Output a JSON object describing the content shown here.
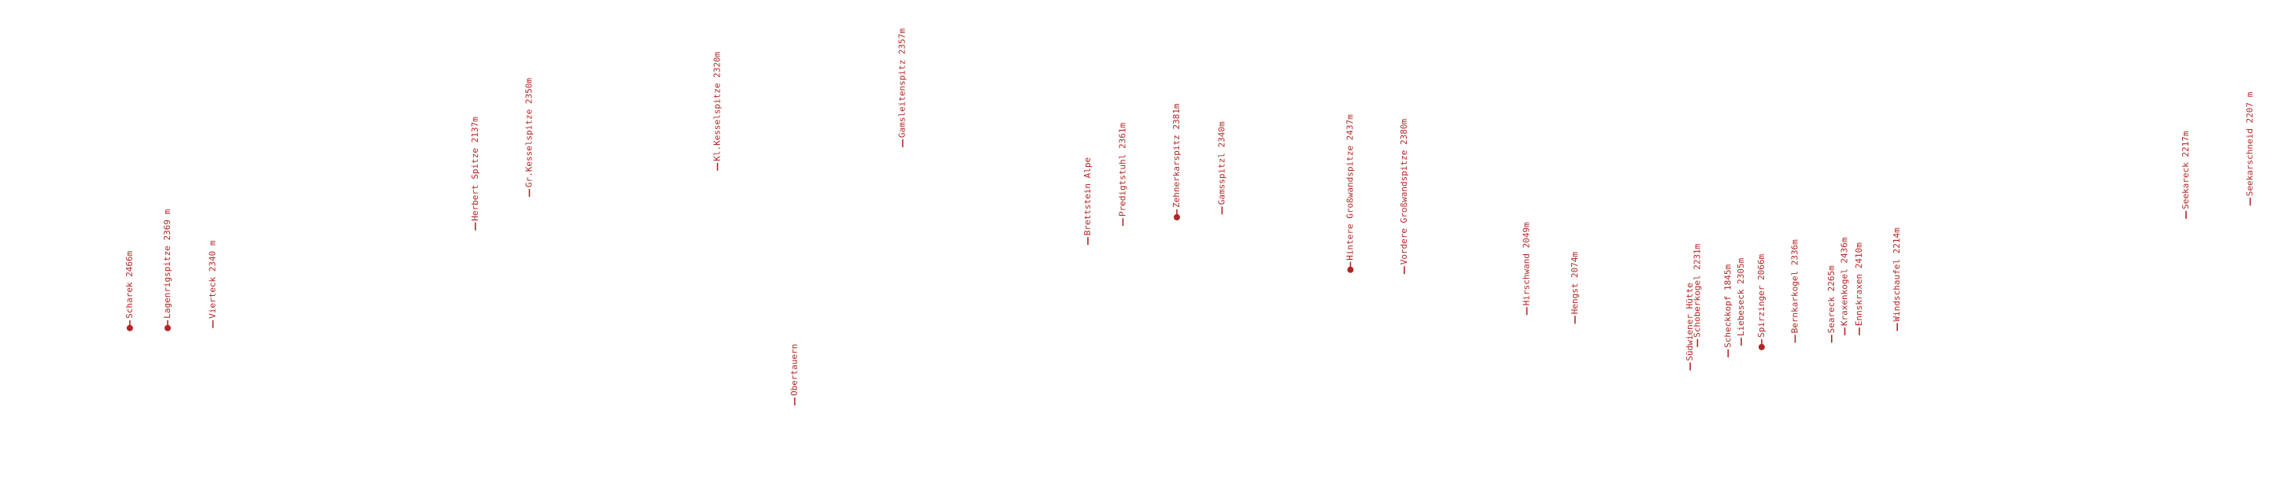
{
  "labels": [
    {
      "text": "Scharek 2466m"
    },
    {
      "text": "Lagenrigspitze 2369 m"
    },
    {
      "text": "Vierteck 2340 m"
    },
    {
      "text": "Herbert Spitze 2137m"
    },
    {
      "text": "Gr.Kesselspitze 2350m"
    },
    {
      "text": "Kl.Kesselspitze 2320m"
    },
    {
      "text": "Obertauern"
    },
    {
      "text": "Gamsleitenspitz 2357m"
    },
    {
      "text": "Brettstein Alpe"
    },
    {
      "text": "Predigtstuhl 2361m"
    },
    {
      "text": "Zehnerkarspitz 2381m"
    },
    {
      "text": "Gamsspitzl 2340m"
    },
    {
      "text": "Hintere Großwandspitze 2437m"
    },
    {
      "text": "Vordere Großwandspitze 2380m"
    },
    {
      "text": "Hirschwand 2049m"
    },
    {
      "text": "Hengst 2074m"
    },
    {
      "text": "Südwiener Hütte"
    },
    {
      "text": "Schoberkogel 2231m"
    },
    {
      "text": "Scheckkopf 1845m"
    },
    {
      "text": "Liebeseck 2305m"
    },
    {
      "text": "Spirzinger 2066m"
    },
    {
      "text": "Bernkarkogel 2336m"
    },
    {
      "text": "Seareck 2265m"
    },
    {
      "text": "Kraxenkogel 2436m"
    },
    {
      "text": "Ennskraxen 2410m"
    },
    {
      "text": "Windschaufel 2214m"
    },
    {
      "text": "Seekareck 2217m"
    },
    {
      "text": "Seekarschneid 2207 m"
    }
  ]
}
